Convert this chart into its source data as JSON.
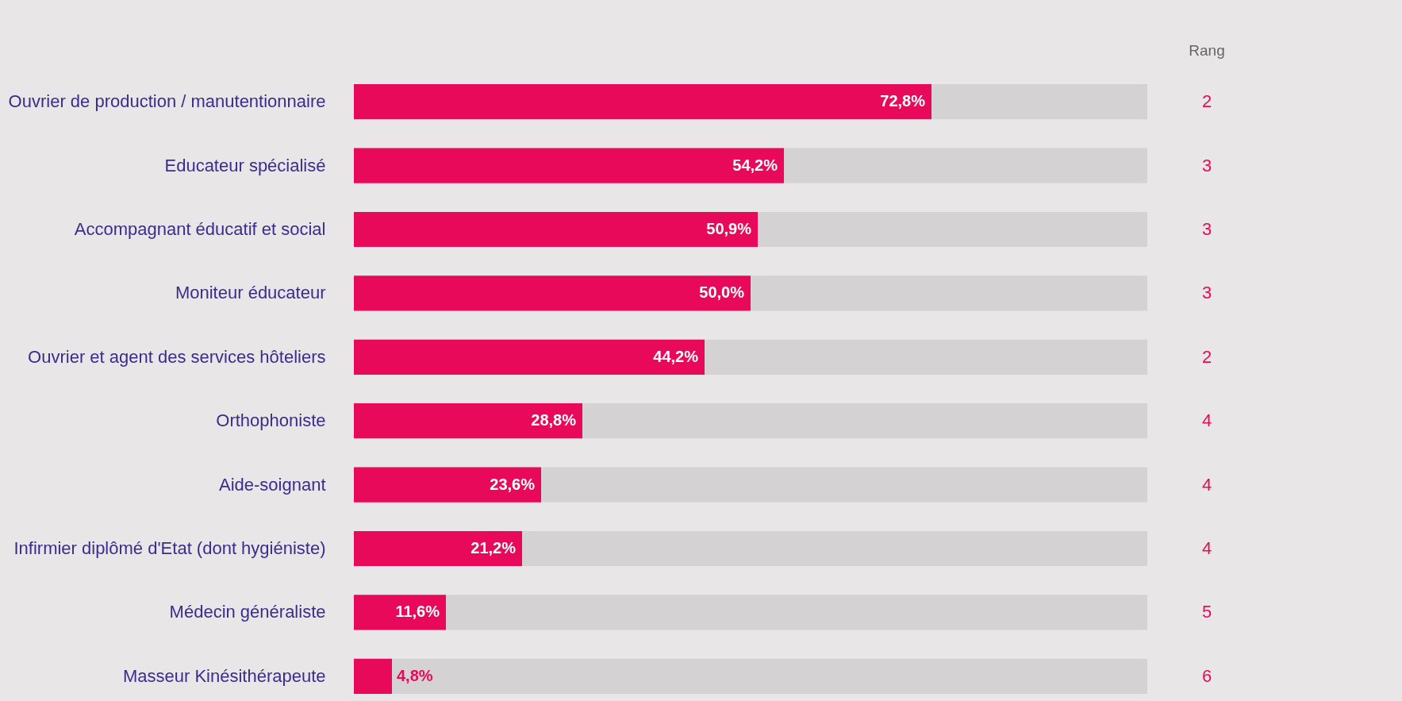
{
  "chart_data": {
    "type": "bar",
    "orientation": "horizontal",
    "stacked": true,
    "grid": false,
    "tick_labels": "y",
    "xlim": [
      0,
      100
    ],
    "categories": [
      "Ouvrier de production / manutentionnaire",
      "Educateur spécialisé",
      "Accompagnant éducatif et social",
      "Moniteur éducateur",
      "Ouvrier et agent des services hôteliers",
      "Orthophoniste",
      "Aide-soignant",
      "Infirmier diplômé d'Etat (dont hygiéniste)",
      "Médecin généraliste",
      "Masseur Kinésithérapeute"
    ],
    "series": [
      {
        "color": "#e8095b",
        "values": [
          72.8,
          54.2,
          50.9,
          50.0,
          44.2,
          28.8,
          23.6,
          21.2,
          11.6,
          4.8
        ],
        "value_labels": [
          "72,8%",
          "54,2%",
          "50,9%",
          "50,0%",
          "44,2%",
          "28,8%",
          "23,6%",
          "21,2%",
          "11,6%",
          "4,8%"
        ]
      },
      {
        "color": "#d4d2d3",
        "values": [
          27.2,
          45.8,
          49.1,
          50.0,
          55.8,
          71.2,
          76.4,
          78.8,
          88.4,
          95.2
        ]
      }
    ],
    "annotations": [
      "Rang",
      "2",
      "3",
      "3",
      "3",
      "2",
      "4",
      "4",
      "4",
      "5",
      "6"
    ]
  }
}
